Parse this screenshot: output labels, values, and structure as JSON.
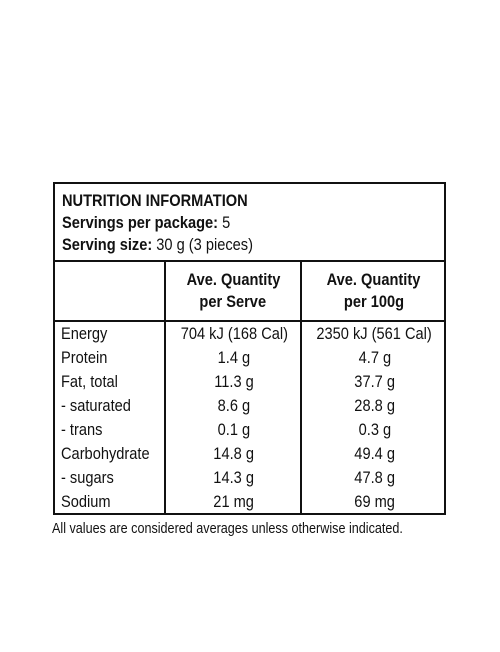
{
  "panel": {
    "title": "NUTRITION INFORMATION",
    "servings_label": "Servings per package:",
    "servings_value": "5",
    "size_label": "Serving size:",
    "size_value": "30 g (3 pieces)"
  },
  "columns": {
    "per_serve": [
      "Ave. Quantity",
      "per Serve"
    ],
    "per_100g": [
      "Ave. Quantity",
      "per 100g"
    ]
  },
  "rows": [
    {
      "name": "Energy",
      "per_serve": "704 kJ (168 Cal)",
      "per_100g": "2350 kJ (561 Cal)"
    },
    {
      "name": "Protein",
      "per_serve": "1.4 g",
      "per_100g": "4.7 g"
    },
    {
      "name": "Fat, total",
      "per_serve": "11.3 g",
      "per_100g": "37.7 g"
    },
    {
      "name": "- saturated",
      "per_serve": "8.6 g",
      "per_100g": "28.8 g"
    },
    {
      "name": "- trans",
      "per_serve": "0.1 g",
      "per_100g": "0.3 g"
    },
    {
      "name": "Carbohydrate",
      "per_serve": "14.8 g",
      "per_100g": "49.4 g"
    },
    {
      "name": "- sugars",
      "per_serve": "14.3 g",
      "per_100g": "47.8 g"
    },
    {
      "name": "Sodium",
      "per_serve": "21 mg",
      "per_100g": "69 mg"
    }
  ],
  "footnote": "All values are considered averages unless otherwise indicated."
}
